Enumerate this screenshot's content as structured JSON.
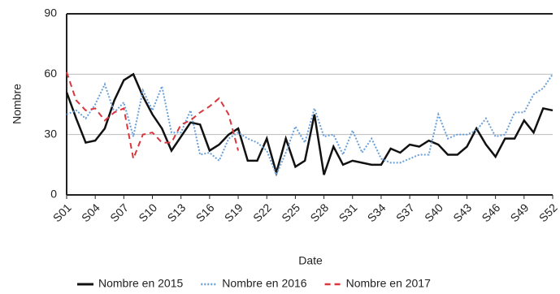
{
  "chart_data": {
    "type": "line",
    "x_label": "Date",
    "y_label": "Nombre",
    "categories": [
      "S01",
      null,
      null,
      "S04",
      null,
      null,
      "S07",
      null,
      null,
      "S10",
      null,
      null,
      "S13",
      null,
      null,
      "S16",
      null,
      null,
      "S19",
      null,
      null,
      "S22",
      null,
      null,
      "S25",
      null,
      null,
      "S28",
      null,
      null,
      "S31",
      null,
      null,
      "S34",
      null,
      null,
      "S37",
      null,
      null,
      "S40",
      null,
      null,
      "S43",
      null,
      null,
      "S46",
      null,
      null,
      "S49",
      null,
      null,
      "S52"
    ],
    "ylim": [
      0,
      90
    ],
    "yticks": [
      0,
      30,
      60,
      90
    ],
    "grid": true,
    "legend": "bottom",
    "series": [
      {
        "name": "Nombre en 2015",
        "color": "#111111",
        "style": "solid",
        "values": [
          51,
          38,
          26,
          27,
          33,
          47,
          57,
          60,
          49,
          40,
          33,
          22,
          29,
          36,
          35,
          22,
          25,
          30,
          33,
          17,
          17,
          28,
          11,
          28,
          14,
          17,
          40,
          10,
          24,
          15,
          17,
          16,
          15,
          15,
          23,
          21,
          25,
          24,
          27,
          25,
          20,
          20,
          24,
          33,
          25,
          19,
          28,
          28,
          37,
          31,
          43,
          42
        ]
      },
      {
        "name": "Nombre en 2016",
        "color": "#6a9fd8",
        "style": "dotted",
        "values": [
          40,
          42,
          38,
          45,
          55,
          41,
          46,
          29,
          52,
          42,
          54,
          31,
          31,
          42,
          20,
          21,
          17,
          28,
          31,
          28,
          26,
          22,
          10,
          21,
          34,
          26,
          43,
          29,
          30,
          20,
          32,
          21,
          28,
          18,
          16,
          16,
          18,
          20,
          20,
          40,
          28,
          30,
          30,
          32,
          38,
          29,
          30,
          41,
          41,
          50,
          53,
          60
        ]
      },
      {
        "name": "Nombre en 2017",
        "color": "#d9363e",
        "style": "dashed",
        "values": [
          61,
          47,
          42,
          43,
          37,
          41,
          43,
          18,
          30,
          31,
          26,
          26,
          35,
          37,
          41,
          44,
          48,
          40,
          22,
          null,
          null,
          null,
          null,
          null,
          null,
          null,
          null,
          null,
          null,
          null,
          null,
          null,
          null,
          null,
          null,
          null,
          null,
          null,
          null,
          null,
          null,
          null,
          null,
          null,
          null,
          null,
          null,
          null,
          null,
          null,
          null,
          null
        ]
      }
    ]
  }
}
